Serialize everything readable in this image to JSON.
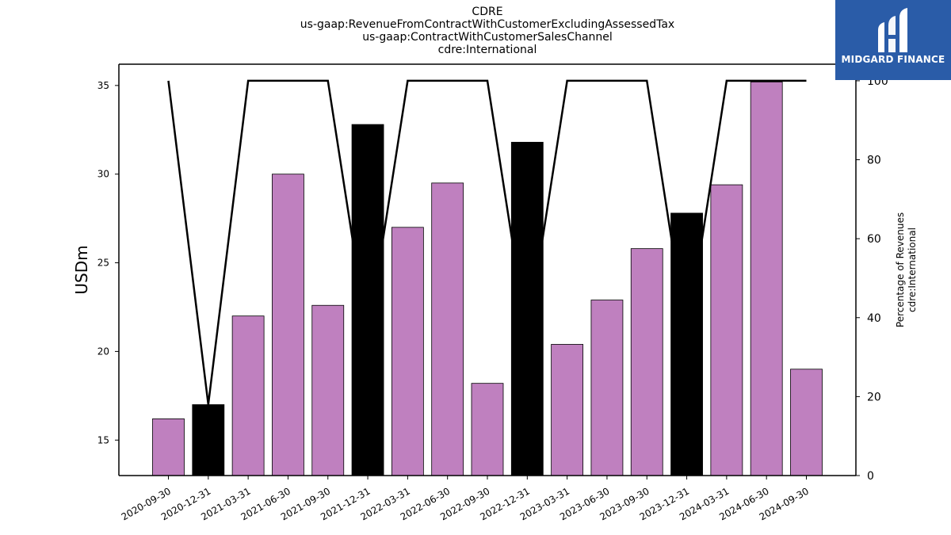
{
  "header": {
    "title_lines": [
      "CDRE",
      "us-gaap:RevenueFromContractWithCustomerExcludingAssessedTax",
      "us-gaap:ContractWithCustomerSalesChannel",
      "cdre:International"
    ]
  },
  "logo": {
    "text": "MIDGARD FINANCE",
    "background": "#2a5ca8"
  },
  "chart_data": {
    "type": "bar",
    "categories": [
      "2020-09-30",
      "2020-12-31",
      "2021-03-31",
      "2021-06-30",
      "2021-09-30",
      "2021-12-31",
      "2022-03-31",
      "2022-06-30",
      "2022-09-30",
      "2022-12-31",
      "2023-03-31",
      "2023-06-30",
      "2023-09-30",
      "2023-12-31",
      "2024-03-31",
      "2024-06-30",
      "2024-09-30"
    ],
    "series": [
      {
        "type": "bar",
        "axis": "left",
        "values": [
          16.2,
          17.0,
          22.0,
          30.0,
          22.6,
          32.8,
          27.0,
          29.5,
          18.2,
          31.8,
          20.4,
          22.9,
          25.8,
          27.8,
          29.4,
          35.2,
          19.0
        ],
        "colors": [
          "#bf80bf",
          "#000000",
          "#bf80bf",
          "#bf80bf",
          "#bf80bf",
          "#000000",
          "#bf80bf",
          "#bf80bf",
          "#bf80bf",
          "#000000",
          "#bf80bf",
          "#bf80bf",
          "#bf80bf",
          "#000000",
          "#bf80bf",
          "#bf80bf",
          "#bf80bf"
        ]
      },
      {
        "type": "line",
        "axis": "right",
        "values": [
          100,
          18,
          100,
          100,
          100,
          35,
          100,
          100,
          100,
          35,
          100,
          100,
          100,
          35,
          100,
          100,
          100
        ],
        "color": "#000000"
      }
    ],
    "ylabel": "USDm",
    "y2label_lines": [
      "Percentage of Revenues",
      "cdre:International"
    ],
    "ylim": [
      13,
      36.2
    ],
    "y2lim": [
      0,
      104.2
    ],
    "yticks": [
      15,
      20,
      25,
      30,
      35
    ],
    "y2ticks": [
      0,
      20,
      40,
      60,
      80,
      100
    ],
    "grid": false,
    "legend": "none"
  }
}
